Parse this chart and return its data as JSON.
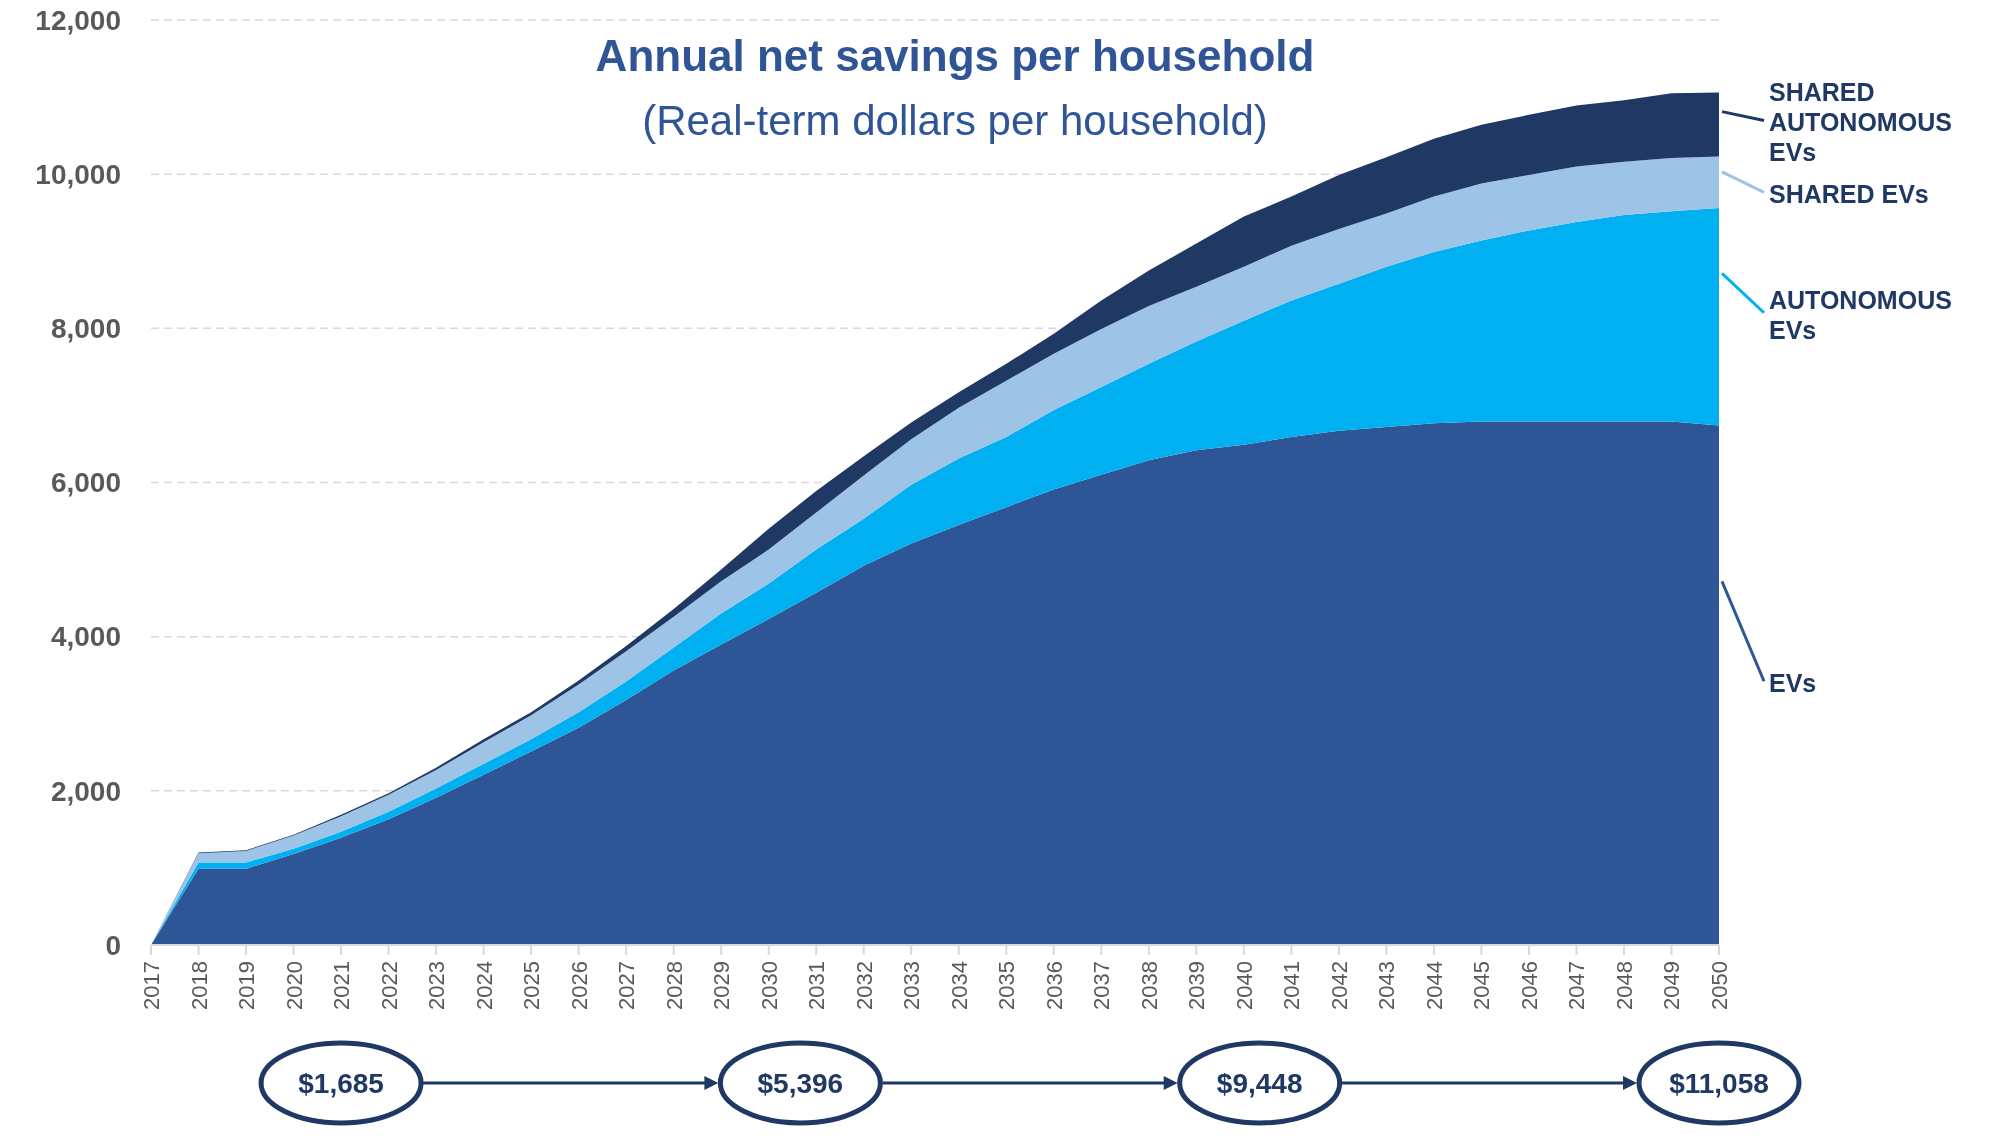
{
  "chart_data": {
    "type": "area",
    "stacked": true,
    "title": "Annual net savings per household",
    "subtitle": "(Real-term dollars per household)",
    "categories": [
      "2017",
      "2018",
      "2019",
      "2020",
      "2021",
      "2022",
      "2023",
      "2024",
      "2025",
      "2026",
      "2027",
      "2028",
      "2029",
      "2030",
      "2031",
      "2032",
      "2033",
      "2034",
      "2035",
      "2036",
      "2037",
      "2038",
      "2039",
      "2040",
      "2041",
      "2042",
      "2043",
      "2044",
      "2045",
      "2046",
      "2047",
      "2048",
      "2049",
      "2050"
    ],
    "series": [
      {
        "name": "EVs",
        "color": "#2e5596",
        "values": [
          0,
          990,
          990,
          1180,
          1390,
          1630,
          1910,
          2210,
          2510,
          2820,
          3180,
          3560,
          3900,
          4230,
          4570,
          4920,
          5210,
          5450,
          5680,
          5910,
          6100,
          6290,
          6420,
          6490,
          6590,
          6670,
          6720,
          6770,
          6790,
          6790,
          6790,
          6790,
          6790,
          6740
        ]
      },
      {
        "name": "AUTONOMOUS EVs",
        "color": "#00b0f0",
        "values": [
          0,
          80,
          80,
          70,
          80,
          100,
          120,
          140,
          160,
          200,
          240,
          300,
          400,
          460,
          560,
          610,
          760,
          860,
          910,
          1030,
          1140,
          1250,
          1410,
          1610,
          1770,
          1910,
          2080,
          2220,
          2350,
          2480,
          2590,
          2680,
          2730,
          2820
        ]
      },
      {
        "name": "SHARED EVs",
        "color": "#9dc3e6",
        "values": [
          0,
          120,
          150,
          170,
          200,
          220,
          240,
          280,
          310,
          360,
          390,
          400,
          420,
          440,
          480,
          560,
          590,
          660,
          730,
          730,
          750,
          750,
          710,
          700,
          710,
          710,
          690,
          720,
          740,
          720,
          720,
          690,
          690,
          670
        ]
      },
      {
        "name": "SHARED AUTONOMOUS EVs",
        "color": "#203864",
        "values": [
          0,
          10,
          10,
          10,
          20,
          20,
          30,
          40,
          40,
          50,
          70,
          100,
          150,
          270,
          280,
          250,
          220,
          200,
          220,
          260,
          370,
          460,
          560,
          650,
          640,
          700,
          730,
          750,
          760,
          780,
          790,
          800,
          840,
          830
        ]
      }
    ],
    "ylim": [
      0,
      12000
    ],
    "yticks": [
      0,
      {
        "value": 2000,
        "label": "2,000"
      },
      {
        "value": 4000,
        "label": "4,000"
      },
      {
        "value": 6000,
        "label": "6,000"
      },
      {
        "value": 8000,
        "label": "8,000"
      },
      {
        "value": 10000,
        "label": "10,000"
      },
      {
        "value": 12000,
        "label": "12,000"
      }
    ],
    "grid": "y",
    "legend": "right",
    "annotations": [
      "$1,685",
      "$5,396",
      "$9,448",
      "$11,058"
    ]
  }
}
